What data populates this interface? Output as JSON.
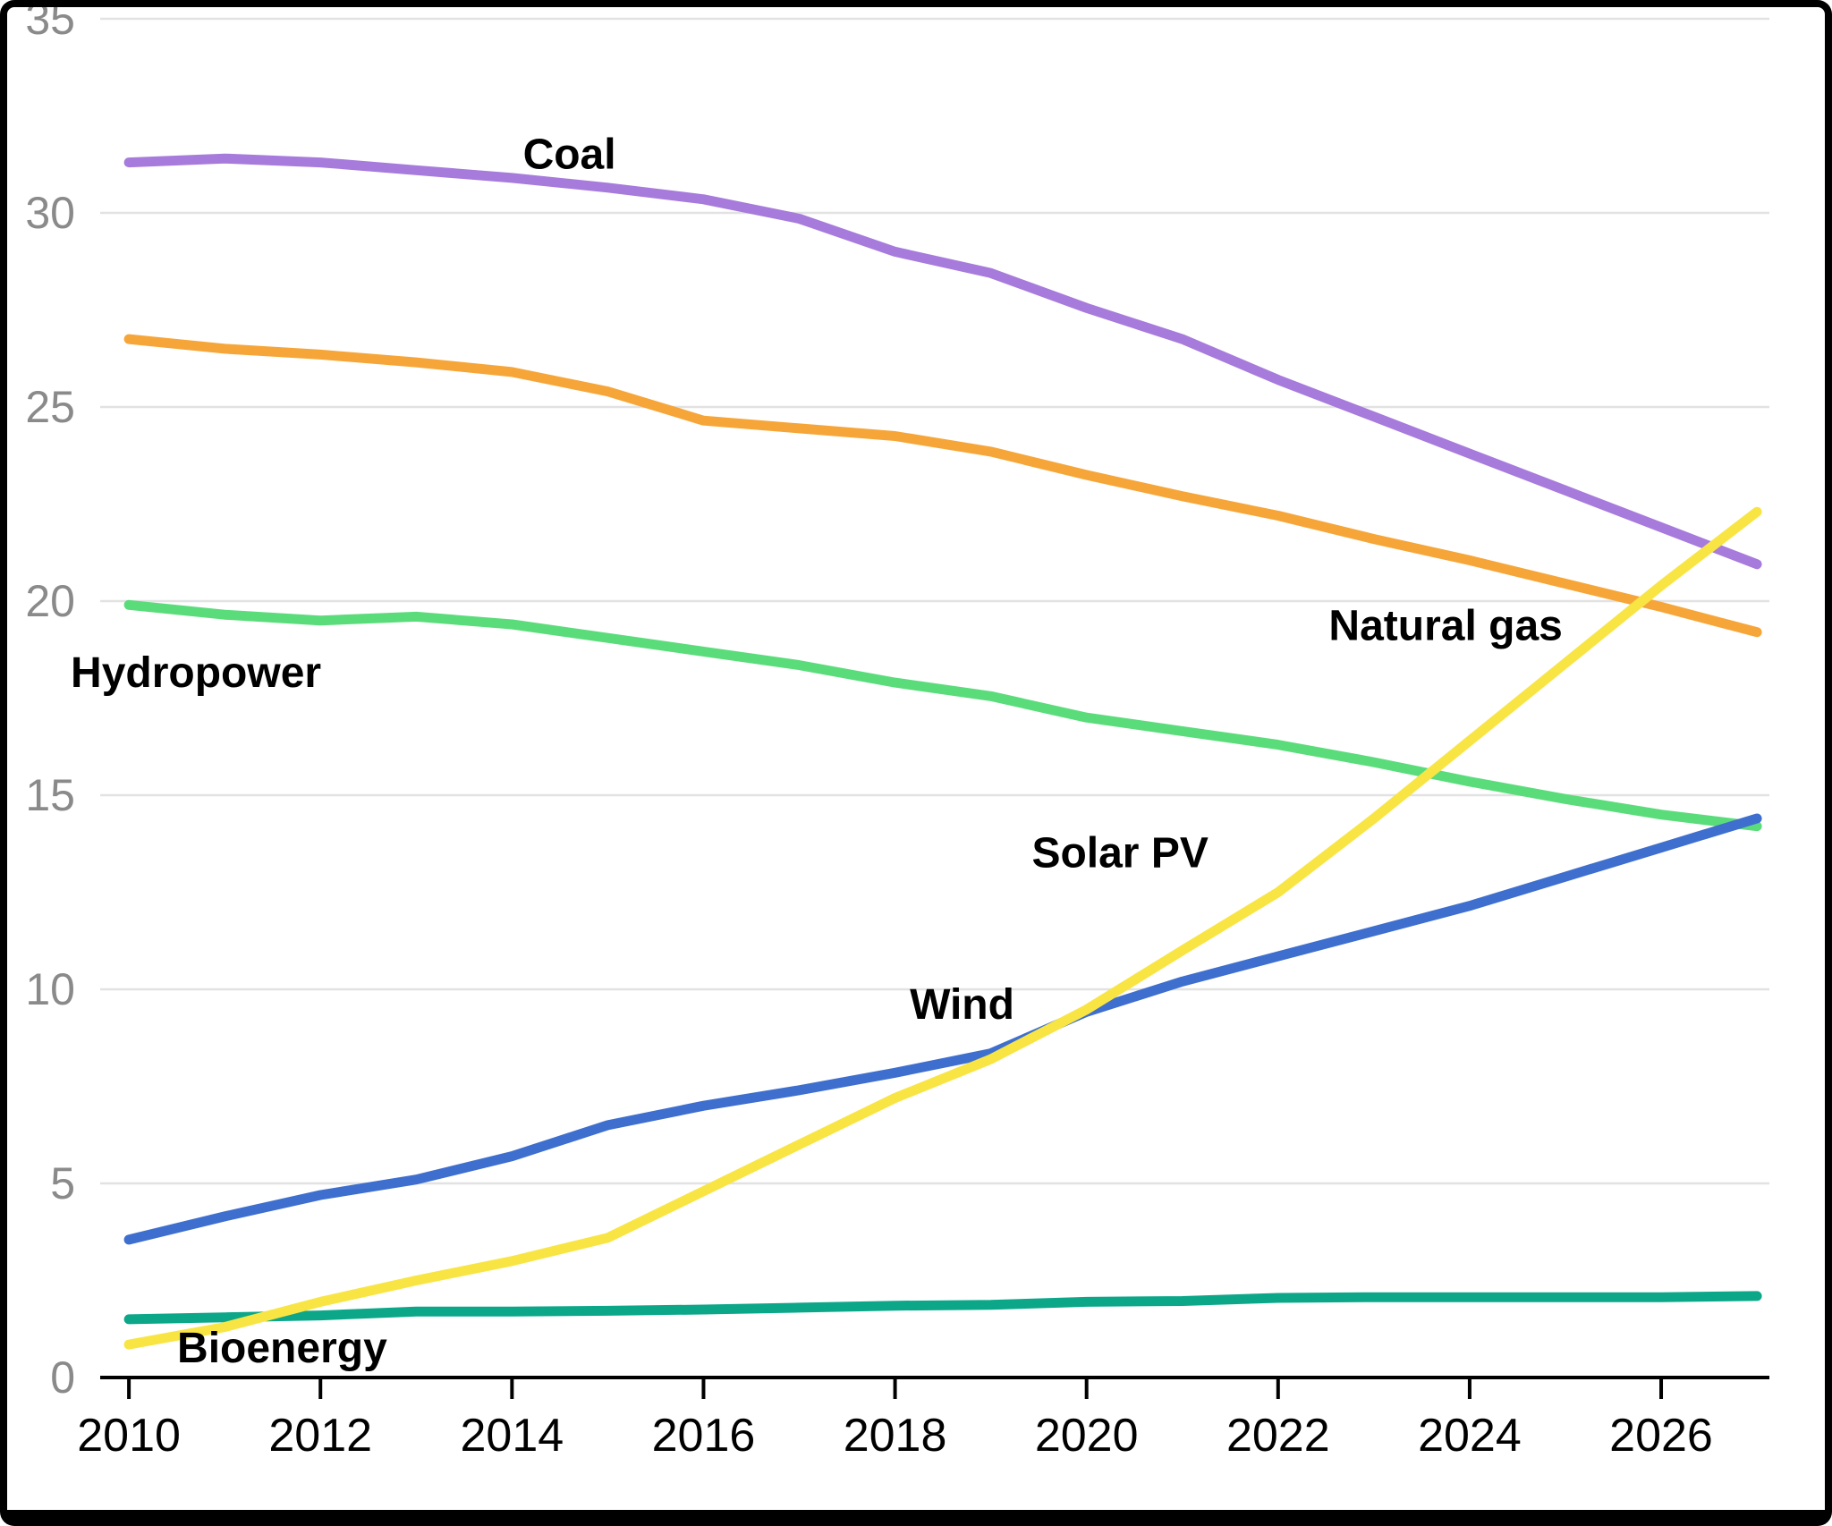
{
  "chart_data": {
    "type": "line",
    "title": "",
    "xlabel": "",
    "ylabel": "",
    "x": [
      2010,
      2011,
      2012,
      2013,
      2014,
      2015,
      2016,
      2017,
      2018,
      2019,
      2020,
      2021,
      2022,
      2023,
      2024,
      2025,
      2026,
      2027
    ],
    "x_ticks": [
      2010,
      2012,
      2014,
      2016,
      2018,
      2020,
      2022,
      2024,
      2026
    ],
    "xlim": [
      2009.7,
      2027.13
    ],
    "ylim": [
      0,
      35
    ],
    "y_ticks": [
      0,
      5,
      10,
      15,
      20,
      25,
      30,
      35
    ],
    "grid": "horizontal",
    "legend_position": "inline-labels",
    "series": [
      {
        "name": "Hydropower",
        "slug": "hydropower",
        "color": "#5BDC7B",
        "label": {
          "text": "Hydropower",
          "x": 2010.7,
          "y": 18.15
        },
        "values": [
          19.9,
          19.65,
          19.5,
          19.6,
          19.4,
          19.05,
          18.7,
          18.35,
          17.9,
          17.55,
          17.0,
          16.65,
          16.3,
          15.85,
          15.35,
          14.9,
          14.5,
          14.2
        ]
      },
      {
        "name": "Natural gas",
        "slug": "natural-gas",
        "color": "#F6A639",
        "label": {
          "text": "Natural gas",
          "x": 2023.75,
          "y": 19.35
        },
        "values": [
          26.75,
          26.5,
          26.35,
          26.15,
          25.9,
          25.4,
          24.65,
          24.45,
          24.25,
          23.85,
          23.25,
          22.7,
          22.2,
          21.6,
          21.05,
          20.45,
          19.85,
          19.2
        ]
      },
      {
        "name": "Coal",
        "slug": "coal",
        "color": "#A77BDB",
        "label": {
          "text": "Coal",
          "x": 2014.6,
          "y": 31.5
        },
        "values": [
          31.3,
          31.4,
          31.3,
          31.1,
          30.9,
          30.65,
          30.35,
          29.85,
          29.0,
          28.45,
          27.55,
          26.75,
          25.7,
          24.75,
          23.8,
          22.85,
          21.9,
          20.95
        ]
      },
      {
        "name": "Bioenergy",
        "slug": "bioenergy",
        "color": "#0CA789",
        "label": {
          "text": "Bioenergy",
          "x": 2011.6,
          "y": 0.75
        },
        "values": [
          1.5,
          1.55,
          1.6,
          1.7,
          1.7,
          1.72,
          1.75,
          1.8,
          1.85,
          1.87,
          1.95,
          1.97,
          2.05,
          2.07,
          2.07,
          2.07,
          2.07,
          2.1
        ]
      },
      {
        "name": "Wind",
        "slug": "wind",
        "color": "#3E6FCE",
        "label": {
          "text": "Wind",
          "x": 2018.7,
          "y": 9.6
        },
        "values": [
          3.55,
          4.15,
          4.7,
          5.1,
          5.7,
          6.5,
          7.0,
          7.4,
          7.85,
          8.35,
          9.42,
          10.2,
          10.85,
          11.5,
          12.15,
          12.9,
          13.65,
          14.4
        ]
      },
      {
        "name": "Solar PV",
        "slug": "solar-pv",
        "color": "#F8E544",
        "label": {
          "text": "Solar PV",
          "x": 2020.35,
          "y": 13.5
        },
        "values": [
          0.85,
          1.3,
          1.95,
          2.5,
          3.0,
          3.6,
          4.8,
          6.0,
          7.2,
          8.2,
          9.48,
          11.0,
          12.5,
          14.4,
          16.4,
          18.4,
          20.4,
          22.3
        ]
      }
    ],
    "axis_style": {
      "grid_color": "#E2E2E2",
      "axis_color": "#000000",
      "y_tick_label_color": "#8A8A8A",
      "x_tick_label_color": "#000000",
      "series_label_color": "#000000"
    }
  }
}
